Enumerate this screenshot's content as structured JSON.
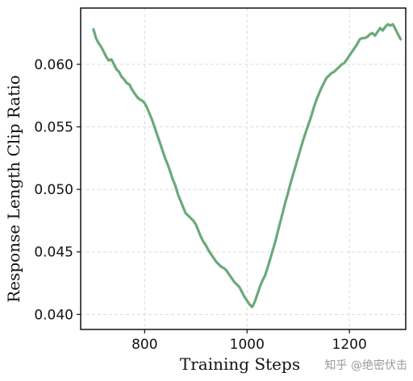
{
  "chart_data": {
    "type": "line",
    "xlabel": "Training Steps",
    "ylabel": "Response Length Clip Ratio",
    "xlim": [
      675,
      1310
    ],
    "ylim": [
      0.0388,
      0.0645
    ],
    "xticks": [
      800,
      1000,
      1200
    ],
    "xtick_labels": [
      "800",
      "1000",
      "1200"
    ],
    "yticks": [
      0.04,
      0.045,
      0.05,
      0.055,
      0.06
    ],
    "ytick_labels": [
      "0.040",
      "0.045",
      "0.050",
      "0.055",
      "0.060"
    ],
    "grid": true,
    "series": [
      {
        "color": "#6aaa7a",
        "x": [
          700,
          705,
          710,
          715,
          720,
          725,
          730,
          735,
          740,
          745,
          750,
          755,
          760,
          765,
          770,
          775,
          780,
          785,
          790,
          795,
          800,
          805,
          810,
          815,
          820,
          825,
          830,
          835,
          840,
          845,
          850,
          855,
          860,
          865,
          870,
          875,
          880,
          885,
          890,
          895,
          900,
          905,
          910,
          915,
          920,
          925,
          930,
          935,
          940,
          945,
          950,
          955,
          960,
          965,
          970,
          975,
          980,
          985,
          990,
          995,
          1000,
          1005,
          1010,
          1015,
          1020,
          1025,
          1030,
          1035,
          1040,
          1045,
          1050,
          1055,
          1060,
          1065,
          1070,
          1075,
          1080,
          1085,
          1090,
          1095,
          1100,
          1105,
          1110,
          1115,
          1120,
          1125,
          1130,
          1135,
          1140,
          1145,
          1150,
          1155,
          1160,
          1165,
          1170,
          1175,
          1180,
          1185,
          1190,
          1195,
          1200,
          1205,
          1210,
          1215,
          1220,
          1225,
          1230,
          1235,
          1240,
          1245,
          1250,
          1255,
          1260,
          1265,
          1270,
          1275,
          1280,
          1285,
          1290,
          1295,
          1300
        ],
        "y": [
          0.0628,
          0.0621,
          0.0617,
          0.0614,
          0.061,
          0.0606,
          0.0603,
          0.0604,
          0.06,
          0.0596,
          0.0594,
          0.059,
          0.0588,
          0.0585,
          0.0584,
          0.058,
          0.0577,
          0.0574,
          0.0572,
          0.0571,
          0.0569,
          0.0565,
          0.056,
          0.0555,
          0.0549,
          0.0543,
          0.0537,
          0.0531,
          0.0525,
          0.052,
          0.0514,
          0.0508,
          0.0503,
          0.0496,
          0.0491,
          0.0486,
          0.0481,
          0.0479,
          0.0477,
          0.0475,
          0.0472,
          0.0467,
          0.0462,
          0.0458,
          0.0455,
          0.0451,
          0.0448,
          0.0445,
          0.0442,
          0.044,
          0.0438,
          0.0437,
          0.0435,
          0.0432,
          0.0429,
          0.0426,
          0.0424,
          0.0422,
          0.0418,
          0.0414,
          0.0411,
          0.0408,
          0.0406,
          0.041,
          0.0416,
          0.0422,
          0.0427,
          0.0431,
          0.0437,
          0.0444,
          0.0451,
          0.0458,
          0.0466,
          0.0474,
          0.0482,
          0.049,
          0.0497,
          0.0505,
          0.0512,
          0.0519,
          0.0526,
          0.0533,
          0.054,
          0.0546,
          0.0552,
          0.0558,
          0.0565,
          0.0571,
          0.0576,
          0.0581,
          0.0585,
          0.0589,
          0.0591,
          0.0593,
          0.0594,
          0.0596,
          0.0598,
          0.06,
          0.0601,
          0.0604,
          0.0607,
          0.061,
          0.0613,
          0.0616,
          0.062,
          0.0621,
          0.0621,
          0.0622,
          0.0624,
          0.0625,
          0.0623,
          0.0626,
          0.0629,
          0.0627,
          0.063,
          0.0632,
          0.0631,
          0.0632,
          0.0628,
          0.0624,
          0.062
        ]
      }
    ]
  },
  "watermark": "知乎 @绝密伏击"
}
